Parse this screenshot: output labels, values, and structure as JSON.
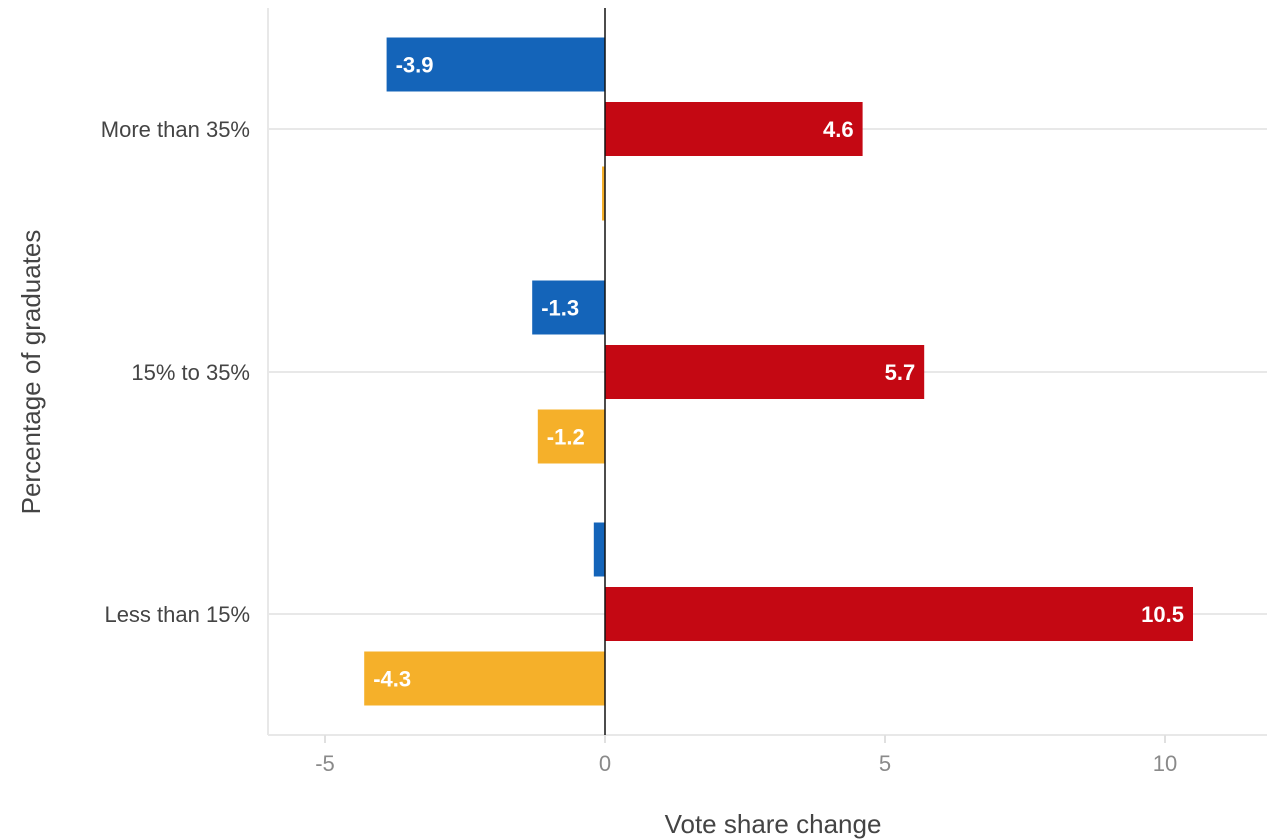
{
  "chart_data": {
    "type": "bar",
    "orientation": "horizontal",
    "xlabel": "Vote share change",
    "ylabel": "Percentage of graduates",
    "categories": [
      "More than 35%",
      "15% to 35%",
      "Less than 15%"
    ],
    "x_ticks": [
      -5,
      0,
      5,
      10
    ],
    "xlim": [
      -6,
      11.8
    ],
    "grid": true,
    "legend": "none",
    "series": [
      {
        "color": "#1464b9",
        "values": [
          -3.9,
          -1.3,
          -0.2
        ],
        "labels": [
          "-3.9",
          "-1.3",
          ""
        ]
      },
      {
        "color": "#c40813",
        "values": [
          4.6,
          5.7,
          10.5
        ],
        "labels": [
          "4.6",
          "5.7",
          "10.5"
        ]
      },
      {
        "color": "#f5b02a",
        "values": [
          -0.05,
          -1.2,
          -4.3
        ],
        "labels": [
          "",
          "-1.2",
          "-4.3"
        ]
      }
    ]
  }
}
